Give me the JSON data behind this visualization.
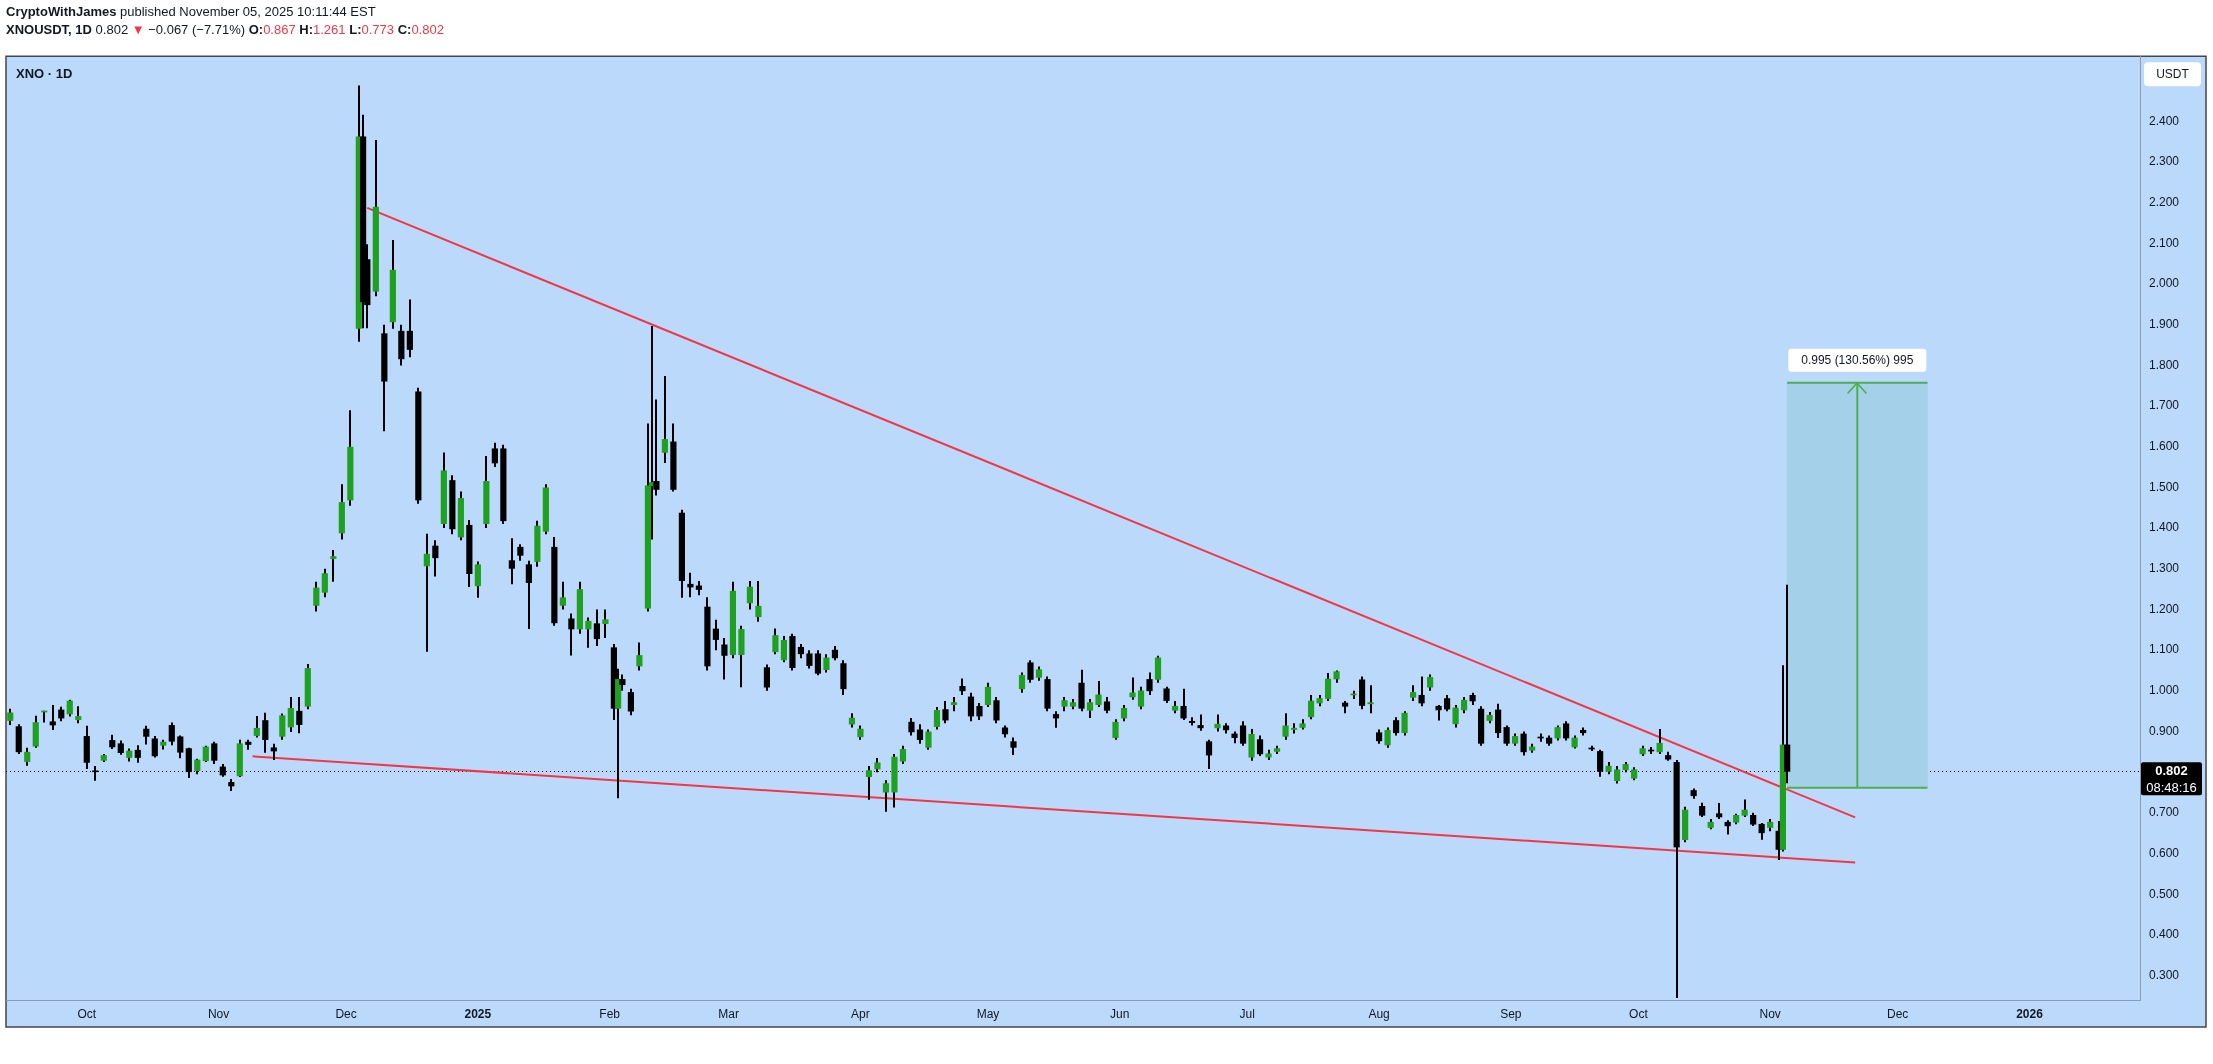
{
  "chart_data": {
    "type": "candlestick",
    "title": "CryptoWithJames published November 05, 2025 10:11:44 EST",
    "subtitle": "XNOUSDT, 1D 0.802 ▼ −0.067 (−7.71%) O:0.867 H:1.261 L:0.773 C:0.802",
    "ylabel": "USDT",
    "annotations": [
      "XNO · 1D",
      "08:48:16"
    ],
    "xlim": [
      "2024-09-12",
      "2026-01-27"
    ],
    "xticks": [
      {
        "value": "2024-10-01",
        "label": "Oct"
      },
      {
        "value": "2024-11-01",
        "label": "Nov"
      },
      {
        "value": "2024-12-01",
        "label": "Dec"
      },
      {
        "value": "2025-01-01",
        "label": "2025"
      },
      {
        "value": "2025-02-01",
        "label": "Feb"
      },
      {
        "value": "2025-03-01",
        "label": "Mar"
      },
      {
        "value": "2025-04-01",
        "label": "Apr"
      },
      {
        "value": "2025-05-01",
        "label": "May"
      },
      {
        "value": "2025-06-01",
        "label": "Jun"
      },
      {
        "value": "2025-07-01",
        "label": "Jul"
      },
      {
        "value": "2025-08-01",
        "label": "Aug"
      },
      {
        "value": "2025-09-01",
        "label": "Sep"
      },
      {
        "value": "2025-10-01",
        "label": "Oct"
      },
      {
        "value": "2025-11-01",
        "label": "Nov"
      },
      {
        "value": "2025-12-01",
        "label": "Dec"
      },
      {
        "value": "2026-01-01",
        "label": "2026"
      }
    ],
    "ylim": [
      0.24,
      2.56
    ],
    "yticks": [
      {
        "value": 0.3,
        "label": "0.300"
      },
      {
        "value": 0.4,
        "label": "0.400"
      },
      {
        "value": 0.5,
        "label": "0.500"
      },
      {
        "value": 0.6,
        "label": "0.600"
      },
      {
        "value": 0.7,
        "label": "0.700"
      },
      {
        "value": 0.9,
        "label": "0.900"
      },
      {
        "value": 1,
        "label": "1.000"
      },
      {
        "value": 1.1,
        "label": "1.100"
      },
      {
        "value": 1.2,
        "label": "1.200"
      },
      {
        "value": 1.3,
        "label": "1.300"
      },
      {
        "value": 1.4,
        "label": "1.400"
      },
      {
        "value": 1.5,
        "label": "1.500"
      },
      {
        "value": 1.6,
        "label": "1.600"
      },
      {
        "value": 1.7,
        "label": "1.700"
      },
      {
        "value": 1.8,
        "label": "1.800"
      },
      {
        "value": 1.9,
        "label": "1.900"
      },
      {
        "value": 2,
        "label": "2.000"
      },
      {
        "value": 2.1,
        "label": "2.100"
      },
      {
        "value": 2.2,
        "label": "2.200"
      },
      {
        "value": 2.3,
        "label": "2.300"
      },
      {
        "value": 2.4,
        "label": "2.400"
      }
    ],
    "ref_lines": [
      {
        "axis": "y",
        "value": 0.802,
        "label": "0.802",
        "color": "#000000",
        "line_style": "dotted"
      }
    ],
    "series": [
      {
        "color": "#000000",
        "x": [
          "2024-09-13",
          "2024-09-15",
          "2024-09-17",
          "2024-09-19",
          "2024-09-21",
          "2024-09-23",
          "2024-09-25",
          "2024-09-27",
          "2024-09-29",
          "2024-10-01",
          "2024-10-03",
          "2024-10-05",
          "2024-10-07",
          "2024-10-09",
          "2024-10-11",
          "2024-10-13",
          "2024-10-15",
          "2024-10-17",
          "2024-10-19",
          "2024-10-21",
          "2024-10-23",
          "2024-10-25",
          "2024-10-27",
          "2024-10-29",
          "2024-10-31",
          "2024-11-02",
          "2024-11-04",
          "2024-11-06",
          "2024-11-08",
          "2024-11-10",
          "2024-11-12",
          "2024-11-14",
          "2024-11-16",
          "2024-11-18",
          "2024-11-20",
          "2024-11-22",
          "2024-11-24",
          "2024-11-26",
          "2024-11-28",
          "2024-11-30",
          "2024-12-02",
          "2024-12-04",
          "2024-12-05",
          "2024-12-06",
          "2024-12-08",
          "2024-12-10",
          "2024-12-12",
          "2024-12-14",
          "2024-12-16",
          "2024-12-18",
          "2024-12-20",
          "2024-12-22",
          "2024-12-24",
          "2024-12-26",
          "2024-12-28",
          "2024-12-30",
          "2025-01-01",
          "2025-01-03",
          "2025-01-05",
          "2025-01-07",
          "2025-01-09",
          "2025-01-11",
          "2025-01-13",
          "2025-01-15",
          "2025-01-17",
          "2025-01-19",
          "2025-01-21",
          "2025-01-23",
          "2025-01-25",
          "2025-01-27",
          "2025-01-29",
          "2025-01-31",
          "2025-02-02",
          "2025-02-03",
          "2025-02-04",
          "2025-02-06",
          "2025-02-08",
          "2025-02-10",
          "2025-02-11",
          "2025-02-12",
          "2025-02-14",
          "2025-02-16",
          "2025-02-18",
          "2025-02-20",
          "2025-02-22",
          "2025-02-24",
          "2025-02-26",
          "2025-02-28",
          "2025-03-02",
          "2025-03-04",
          "2025-03-06",
          "2025-03-08",
          "2025-03-10",
          "2025-03-12",
          "2025-03-14",
          "2025-03-16",
          "2025-03-18",
          "2025-03-20",
          "2025-03-22",
          "2025-03-24",
          "2025-03-26",
          "2025-03-28",
          "2025-03-30",
          "2025-04-01",
          "2025-04-03",
          "2025-04-05",
          "2025-04-07",
          "2025-04-09",
          "2025-04-11",
          "2025-04-13",
          "2025-04-15",
          "2025-04-17",
          "2025-04-19",
          "2025-04-21",
          "2025-04-23",
          "2025-04-25",
          "2025-04-27",
          "2025-04-29",
          "2025-05-01",
          "2025-05-03",
          "2025-05-05",
          "2025-05-07",
          "2025-05-09",
          "2025-05-11",
          "2025-05-13",
          "2025-05-15",
          "2025-05-17",
          "2025-05-19",
          "2025-05-21",
          "2025-05-23",
          "2025-05-25",
          "2025-05-27",
          "2025-05-29",
          "2025-05-31",
          "2025-06-02",
          "2025-06-04",
          "2025-06-06",
          "2025-06-08",
          "2025-06-10",
          "2025-06-12",
          "2025-06-14",
          "2025-06-16",
          "2025-06-18",
          "2025-06-20",
          "2025-06-22",
          "2025-06-24",
          "2025-06-26",
          "2025-06-28",
          "2025-06-30",
          "2025-07-02",
          "2025-07-04",
          "2025-07-06",
          "2025-07-08",
          "2025-07-10",
          "2025-07-12",
          "2025-07-14",
          "2025-07-16",
          "2025-07-18",
          "2025-07-20",
          "2025-07-22",
          "2025-07-24",
          "2025-07-26",
          "2025-07-28",
          "2025-07-30",
          "2025-08-01",
          "2025-08-03",
          "2025-08-05",
          "2025-08-07",
          "2025-08-09",
          "2025-08-11",
          "2025-08-13",
          "2025-08-15",
          "2025-08-17",
          "2025-08-19",
          "2025-08-21",
          "2025-08-23",
          "2025-08-25",
          "2025-08-27",
          "2025-08-29",
          "2025-08-31",
          "2025-09-02",
          "2025-09-04",
          "2025-09-06",
          "2025-09-08",
          "2025-09-10",
          "2025-09-12",
          "2025-09-14",
          "2025-09-16",
          "2025-09-18",
          "2025-09-20",
          "2025-09-22",
          "2025-09-24",
          "2025-09-26",
          "2025-09-28",
          "2025-09-30",
          "2025-10-02",
          "2025-10-04",
          "2025-10-06",
          "2025-10-08",
          "2025-10-10",
          "2025-10-12",
          "2025-10-14",
          "2025-10-16",
          "2025-10-18",
          "2025-10-20",
          "2025-10-22",
          "2025-10-24",
          "2025-10-26",
          "2025-10-28",
          "2025-10-30",
          "2025-11-01",
          "2025-11-03",
          "2025-11-04",
          "2025-11-05"
        ],
        "ohlc": [
          [
            0.927,
            0.956,
            0.916,
            0.946
          ],
          [
            0.912,
            0.918,
            0.845,
            0.85
          ],
          [
            0.826,
            0.86,
            0.816,
            0.849
          ],
          [
            0.864,
            0.939,
            0.86,
            0.922
          ],
          [
            0.948,
            0.951,
            0.922,
            0.95
          ],
          [
            0.924,
            0.965,
            0.904,
            0.916
          ],
          [
            0.953,
            0.961,
            0.925,
            0.933
          ],
          [
            0.943,
            0.978,
            0.937,
            0.975
          ],
          [
            0.929,
            0.962,
            0.92,
            0.937
          ],
          [
            0.888,
            0.914,
            0.808,
            0.824
          ],
          [
            0.803,
            0.815,
            0.779,
            0.801
          ],
          [
            0.829,
            0.845,
            0.825,
            0.841
          ],
          [
            0.878,
            0.892,
            0.857,
            0.862
          ],
          [
            0.87,
            0.878,
            0.843,
            0.848
          ],
          [
            0.836,
            0.858,
            0.826,
            0.852
          ],
          [
            0.854,
            0.866,
            0.823,
            0.836
          ],
          [
            0.906,
            0.914,
            0.868,
            0.888
          ],
          [
            0.882,
            0.889,
            0.836,
            0.84
          ],
          [
            0.866,
            0.88,
            0.856,
            0.874
          ],
          [
            0.915,
            0.922,
            0.866,
            0.876
          ],
          [
            0.887,
            0.89,
            0.834,
            0.849
          ],
          [
            0.858,
            0.86,
            0.786,
            0.801
          ],
          [
            0.804,
            0.833,
            0.795,
            0.83
          ],
          [
            0.828,
            0.865,
            0.825,
            0.862
          ],
          [
            0.87,
            0.875,
            0.82,
            0.829
          ],
          [
            0.813,
            0.82,
            0.789,
            0.793
          ],
          [
            0.775,
            0.783,
            0.754,
            0.766
          ],
          [
            0.791,
            0.88,
            0.788,
            0.87
          ],
          [
            0.874,
            0.88,
            0.855,
            0.868
          ],
          [
            0.89,
            0.938,
            0.885,
            0.908
          ],
          [
            0.927,
            0.946,
            0.848,
            0.88
          ],
          [
            0.86,
            0.87,
            0.83,
            0.852
          ],
          [
            0.888,
            0.944,
            0.88,
            0.939
          ],
          [
            0.911,
            0.985,
            0.899,
            0.957
          ],
          [
            0.95,
            0.985,
            0.896,
            0.917
          ],
          [
            0.962,
            1.066,
            0.955,
            1.055
          ],
          [
            1.21,
            1.268,
            1.195,
            1.253
          ],
          [
            1.242,
            1.3,
            1.23,
            1.288
          ],
          [
            1.325,
            1.346,
            1.268,
            1.33
          ],
          [
            1.388,
            1.508,
            1.372,
            1.463
          ],
          [
            1.469,
            1.69,
            1.455,
            1.599
          ],
          [
            1.891,
            2.488,
            1.858,
            2.362
          ],
          [
            2.362,
            2.416,
            1.891,
            1.956
          ],
          [
            2.06,
            2.098,
            1.891,
            1.949
          ],
          [
            1.982,
            2.354,
            1.97,
            2.189
          ],
          [
            1.878,
            1.9,
            1.638,
            1.761
          ],
          [
            1.907,
            2.108,
            1.89,
            2.034
          ],
          [
            1.884,
            1.9,
            1.8,
            1.816
          ],
          [
            1.884,
            1.962,
            1.82,
            1.839
          ],
          [
            1.735,
            1.745,
            1.46,
            1.469
          ],
          [
            1.307,
            1.386,
            1.096,
            1.336
          ],
          [
            1.356,
            1.37,
            1.281,
            1.327
          ],
          [
            1.411,
            1.586,
            1.4,
            1.541
          ],
          [
            1.517,
            1.53,
            1.385,
            1.398
          ],
          [
            1.378,
            1.49,
            1.37,
            1.473
          ],
          [
            1.407,
            1.42,
            1.255,
            1.288
          ],
          [
            1.258,
            1.318,
            1.229,
            1.31
          ],
          [
            1.411,
            1.577,
            1.4,
            1.515
          ],
          [
            1.595,
            1.61,
            1.55,
            1.56
          ],
          [
            1.595,
            1.605,
            1.41,
            1.418
          ],
          [
            1.32,
            1.375,
            1.262,
            1.301
          ],
          [
            1.353,
            1.36,
            1.32,
            1.333
          ],
          [
            1.31,
            1.32,
            1.152,
            1.266
          ],
          [
            1.318,
            1.418,
            1.305,
            1.405
          ],
          [
            1.392,
            1.508,
            1.385,
            1.499
          ],
          [
            1.353,
            1.378,
            1.16,
            1.167
          ],
          [
            1.21,
            1.268,
            1.2,
            1.229
          ],
          [
            1.177,
            1.19,
            1.087,
            1.152
          ],
          [
            1.152,
            1.268,
            1.14,
            1.249
          ],
          [
            1.152,
            1.18,
            1.106,
            1.171
          ],
          [
            1.165,
            1.2,
            1.11,
            1.128
          ],
          [
            1.165,
            1.2,
            1.13,
            1.175
          ],
          [
            1.106,
            1.115,
            0.928,
            0.957
          ],
          [
            0.957,
            1.054,
            0.736,
            1.028
          ],
          [
            1.028,
            1.04,
            1,
            1.015
          ],
          [
            0.996,
            1.005,
            0.94,
            0.95
          ],
          [
            1.061,
            1.119,
            1.05,
            1.087
          ],
          [
            1.203,
            1.657,
            1.195,
            1.504
          ],
          [
            1.504,
            1.897,
            1.372,
            1.512
          ],
          [
            1.515,
            1.716,
            1.48,
            1.495
          ],
          [
            1.586,
            1.774,
            1.56,
            1.618
          ],
          [
            1.612,
            1.657,
            1.49,
            1.495
          ],
          [
            1.437,
            1.445,
            1.229,
            1.271
          ],
          [
            1.262,
            1.29,
            1.23,
            1.255
          ],
          [
            1.258,
            1.27,
            1.235,
            1.249
          ],
          [
            1.206,
            1.23,
            1.05,
            1.061
          ],
          [
            1.152,
            1.175,
            1.1,
            1.126
          ],
          [
            1.113,
            1.13,
            1.028,
            1.087
          ],
          [
            1.089,
            1.268,
            1.08,
            1.245
          ],
          [
            1.089,
            1.16,
            1.009,
            1.151
          ],
          [
            1.216,
            1.27,
            1.2,
            1.255
          ],
          [
            1.182,
            1.27,
            1.17,
            1.208
          ],
          [
            1.057,
            1.065,
            1,
            1.009
          ],
          [
            1.096,
            1.153,
            1.09,
            1.136
          ],
          [
            1.076,
            1.135,
            1.07,
            1.124
          ],
          [
            1.134,
            1.14,
            1.05,
            1.057
          ],
          [
            1.107,
            1.115,
            1.08,
            1.091
          ],
          [
            1.091,
            1.1,
            1.055,
            1.062
          ],
          [
            1.091,
            1.1,
            1.038,
            1.043
          ],
          [
            1.052,
            1.09,
            1.045,
            1.081
          ],
          [
            1.1,
            1.11,
            1.075,
            1.081
          ],
          [
            1.067,
            1.075,
            0.99,
            1.005
          ],
          [
            0.918,
            0.945,
            0.91,
            0.933
          ],
          [
            0.887,
            0.915,
            0.88,
            0.906
          ],
          [
            0.789,
            0.815,
            0.732,
            0.804
          ],
          [
            0.808,
            0.835,
            0.8,
            0.823
          ],
          [
            0.751,
            0.78,
            0.703,
            0.772
          ],
          [
            0.751,
            0.845,
            0.713,
            0.837
          ],
          [
            0.827,
            0.865,
            0.82,
            0.856
          ],
          [
            0.923,
            0.933,
            0.89,
            0.899
          ],
          [
            0.904,
            0.918,
            0.87,
            0.88
          ],
          [
            0.861,
            0.905,
            0.855,
            0.899
          ],
          [
            0.912,
            0.96,
            0.905,
            0.952
          ],
          [
            0.954,
            0.975,
            0.92,
            0.928
          ],
          [
            0.966,
            0.985,
            0.95,
            0.971
          ],
          [
            1.011,
            1.03,
            0.99,
            1
          ],
          [
            0.985,
            0.995,
            0.925,
            0.938
          ],
          [
            0.962,
            0.97,
            0.928,
            0.938
          ],
          [
            0.966,
            1.02,
            0.96,
            1.009
          ],
          [
            0.976,
            0.985,
            0.92,
            0.928
          ],
          [
            0.909,
            0.915,
            0.885,
            0.894
          ],
          [
            0.875,
            0.885,
            0.842,
            0.861
          ],
          [
            1.005,
            1.045,
            0.995,
            1.038
          ],
          [
            1.069,
            1.075,
            1.02,
            1.028
          ],
          [
            1.033,
            1.06,
            1.025,
            1.052
          ],
          [
            1.028,
            1.035,
            0.95,
            0.957
          ],
          [
            0.942,
            0.95,
            0.909,
            0.933
          ],
          [
            0.962,
            0.985,
            0.95,
            0.976
          ],
          [
            0.962,
            0.98,
            0.955,
            0.971
          ],
          [
            1.019,
            1.052,
            0.95,
            0.957
          ],
          [
            0.952,
            0.98,
            0.933,
            0.971
          ],
          [
            0.966,
            1.024,
            0.96,
            0.99
          ],
          [
            0.973,
            0.985,
            0.945,
            0.952
          ],
          [
            0.885,
            0.93,
            0.88,
            0.923
          ],
          [
            0.933,
            0.965,
            0.925,
            0.957
          ],
          [
            0.985,
            1.033,
            0.978,
            0.995
          ],
          [
            0.962,
            1.01,
            0.955,
            1
          ],
          [
            1.028,
            1.045,
            0.99,
            1
          ],
          [
            1.028,
            1.086,
            1.02,
            1.081
          ],
          [
            1.005,
            1.01,
            0.97,
            0.976
          ],
          [
            0.952,
            0.975,
            0.945,
            0.962
          ],
          [
            0.962,
            1.005,
            0.928,
            0.933
          ],
          [
            0.925,
            0.935,
            0.915,
            0.922
          ],
          [
            0.915,
            0.942,
            0.902,
            0.909
          ],
          [
            0.875,
            0.88,
            0.808,
            0.842
          ],
          [
            0.909,
            0.942,
            0.9,
            0.918
          ],
          [
            0.914,
            0.92,
            0.895,
            0.904
          ],
          [
            0.894,
            0.9,
            0.871,
            0.885
          ],
          [
            0.914,
            0.925,
            0.865,
            0.871
          ],
          [
            0.837,
            0.906,
            0.828,
            0.893
          ],
          [
            0.88,
            0.89,
            0.84,
            0.845
          ],
          [
            0.837,
            0.855,
            0.83,
            0.845
          ],
          [
            0.851,
            0.865,
            0.845,
            0.858
          ],
          [
            0.888,
            0.945,
            0.88,
            0.914
          ],
          [
            0.905,
            0.92,
            0.895,
            0.908
          ],
          [
            0.91,
            0.93,
            0.905,
            0.919
          ],
          [
            0.936,
            0.99,
            0.93,
            0.975
          ],
          [
            0.97,
            0.99,
            0.962,
            0.981
          ],
          [
            0.981,
            1.044,
            0.975,
            1.029
          ],
          [
            1.029,
            1.05,
            1.02,
            1.047
          ],
          [
            0.97,
            0.975,
            0.945,
            0.962
          ],
          [
            0.99,
            1,
            0.98,
            0.992
          ],
          [
            1.027,
            1.035,
            0.955,
            0.964
          ],
          [
            0.968,
            1.014,
            0.945,
            0.971
          ],
          [
            0.897,
            0.905,
            0.87,
            0.877
          ],
          [
            0.867,
            0.91,
            0.86,
            0.903
          ],
          [
            0.927,
            0.935,
            0.89,
            0.897
          ],
          [
            0.897,
            0.95,
            0.89,
            0.945
          ],
          [
            0.984,
            1.014,
            0.975,
            0.996
          ],
          [
            0.989,
            1.035,
            0.962,
            0.97
          ],
          [
            1.009,
            1.04,
            1,
            1.033
          ],
          [
            0.962,
            0.965,
            0.927,
            0.953
          ],
          [
            0.981,
            0.99,
            0.95,
            0.955
          ],
          [
            0.919,
            0.965,
            0.91,
            0.958
          ],
          [
            0.953,
            0.985,
            0.945,
            0.977
          ],
          [
            0.989,
            0.995,
            0.965,
            0.975
          ],
          [
            0.955,
            0.962,
            0.865,
            0.871
          ],
          [
            0.927,
            0.948,
            0.92,
            0.94
          ],
          [
            0.953,
            0.968,
            0.884,
            0.897
          ],
          [
            0.91,
            0.915,
            0.865,
            0.871
          ],
          [
            0.871,
            0.895,
            0.865,
            0.888
          ],
          [
            0.894,
            0.9,
            0.841,
            0.85
          ],
          [
            0.854,
            0.87,
            0.848,
            0.862
          ],
          [
            0.886,
            0.895,
            0.875,
            0.884
          ],
          [
            0.884,
            0.89,
            0.865,
            0.871
          ],
          [
            0.884,
            0.915,
            0.878,
            0.91
          ],
          [
            0.919,
            0.925,
            0.878,
            0.884
          ],
          [
            0.862,
            0.89,
            0.858,
            0.884
          ],
          [
            0.903,
            0.91,
            0.89,
            0.897
          ],
          [
            0.859,
            0.865,
            0.852,
            0.857
          ],
          [
            0.851,
            0.855,
            0.789,
            0.802
          ],
          [
            0.802,
            0.825,
            0.795,
            0.815
          ],
          [
            0.779,
            0.815,
            0.772,
            0.806
          ],
          [
            0.806,
            0.825,
            0.8,
            0.819
          ],
          [
            0.785,
            0.812,
            0.78,
            0.806
          ],
          [
            0.845,
            0.865,
            0.84,
            0.858
          ],
          [
            0.854,
            0.862,
            0.845,
            0.852
          ],
          [
            0.85,
            0.906,
            0.845,
            0.871
          ],
          [
            0.841,
            0.85,
            0.828,
            0.832
          ],
          [
            0.824,
            0.83,
            0.245,
            0.616
          ],
          [
            0.634,
            0.715,
            0.628,
            0.707
          ],
          [
            0.755,
            0.76,
            0.735,
            0.742
          ],
          [
            0.716,
            0.725,
            0.69,
            0.694
          ],
          [
            0.664,
            0.685,
            0.66,
            0.677
          ],
          [
            0.698,
            0.724,
            0.685,
            0.69
          ],
          [
            0.677,
            0.682,
            0.647,
            0.668
          ],
          [
            0.677,
            0.698,
            0.672,
            0.694
          ],
          [
            0.694,
            0.733,
            0.69,
            0.707
          ],
          [
            0.694,
            0.7,
            0.668,
            0.672
          ],
          [
            0.672,
            0.675,
            0.634,
            0.651
          ],
          [
            0.664,
            0.685,
            0.655,
            0.677
          ],
          [
            0.655,
            0.68,
            0.584,
            0.61
          ],
          [
            0.61,
            1.063,
            0.605,
            0.867
          ],
          [
            0.867,
            1.261,
            0.773,
            0.802
          ]
        ],
        "colors": [
          "#20a020",
          "#000000",
          "#20a020",
          "#20a020",
          "#20a020",
          "#000000",
          "#000000",
          "#20a020",
          "#20a020",
          "#000000",
          "#000000",
          "#20a020",
          "#000000",
          "#000000",
          "#20a020",
          "#000000",
          "#000000",
          "#000000",
          "#20a020",
          "#000000",
          "#000000",
          "#000000",
          "#20a020",
          "#20a020",
          "#000000",
          "#000000",
          "#000000",
          "#20a020",
          "#000000",
          "#20a020",
          "#000000",
          "#000000",
          "#20a020",
          "#20a020",
          "#000000",
          "#20a020",
          "#20a020",
          "#20a020",
          "#20a020",
          "#20a020",
          "#20a020",
          "#20a020",
          "#000000",
          "#000000",
          "#20a020",
          "#000000",
          "#20a020",
          "#000000",
          "#000000",
          "#000000",
          "#20a020",
          "#000000",
          "#20a020",
          "#000000",
          "#20a020",
          "#000000",
          "#20a020",
          "#20a020",
          "#000000",
          "#000000",
          "#000000",
          "#000000",
          "#000000",
          "#20a020",
          "#20a020",
          "#000000",
          "#20a020",
          "#000000",
          "#20a020",
          "#20a020",
          "#000000",
          "#20a020",
          "#000000",
          "#20a020",
          "#000000",
          "#000000",
          "#20a020",
          "#20a020",
          "#20a020",
          "#000000",
          "#20a020",
          "#000000",
          "#000000",
          "#000000",
          "#000000",
          "#000000",
          "#000000",
          "#000000",
          "#20a020",
          "#20a020",
          "#20a020",
          "#20a020",
          "#000000",
          "#20a020",
          "#20a020",
          "#000000",
          "#000000",
          "#000000",
          "#000000",
          "#20a020",
          "#000000",
          "#000000",
          "#20a020",
          "#20a020",
          "#20a020",
          "#20a020",
          "#20a020",
          "#20a020",
          "#20a020",
          "#000000",
          "#000000",
          "#20a020",
          "#20a020",
          "#000000",
          "#20a020",
          "#000000",
          "#000000",
          "#000000",
          "#20a020",
          "#000000",
          "#000000",
          "#000000",
          "#20a020",
          "#000000",
          "#20a020",
          "#000000",
          "#000000",
          "#20a020",
          "#20a020",
          "#000000",
          "#20a020",
          "#20a020",
          "#000000",
          "#20a020",
          "#20a020",
          "#20a020",
          "#20a020",
          "#000000",
          "#20a020",
          "#000000",
          "#20a020",
          "#000000",
          "#000000",
          "#000000",
          "#000000",
          "#20a020",
          "#000000",
          "#000000",
          "#000000",
          "#20a020",
          "#000000",
          "#20a020",
          "#20a020",
          "#20a020",
          "#20a020",
          "#20a020",
          "#20a020",
          "#20a020",
          "#20a020",
          "#20a020",
          "#000000",
          "#20a020",
          "#000000",
          "#20a020",
          "#000000",
          "#20a020",
          "#000000",
          "#20a020",
          "#20a020",
          "#000000",
          "#20a020",
          "#000000",
          "#000000",
          "#20a020",
          "#20a020",
          "#000000",
          "#000000",
          "#20a020",
          "#000000",
          "#000000",
          "#20a020",
          "#000000",
          "#20a020",
          "#000000",
          "#000000",
          "#20a020",
          "#000000",
          "#20a020",
          "#000000",
          "#000000",
          "#000000",
          "#20a020",
          "#20a020",
          "#20a020",
          "#20a020",
          "#20a020",
          "#000000",
          "#20a020",
          "#000000",
          "#000000",
          "#20a020",
          "#000000",
          "#000000",
          "#20a020",
          "#000000",
          "#000000",
          "#20a020",
          "#20a020",
          "#000000",
          "#000000",
          "#20a020",
          "#000000",
          "#20a020",
          "#000000"
        ]
      },
      {
        "type": "line",
        "x": [
          "2024-12-06",
          "2025-11-21"
        ],
        "values": [
          2.187,
          0.689
        ],
        "color": "#f23645"
      },
      {
        "type": "line",
        "x": [
          "2024-11-09",
          "2025-11-21"
        ],
        "values": [
          0.839,
          0.578
        ],
        "color": "#f23645"
      },
      {
        "type": "bar",
        "x": [
          "2025-11-21T12:00"
        ],
        "base": [
          0.762
        ],
        "values": [
          0.995
        ],
        "value_labels": [
          "0.995 (130.56%) 995"
        ],
        "color": "#a4d0ea"
      },
      {
        "type": "line",
        "x": [
          "2025-11-05",
          "2025-12-08"
        ],
        "values": [
          0.762,
          0.762
        ],
        "color": "#4caf50"
      },
      {
        "type": "line",
        "x": [
          "2025-11-05",
          "2025-12-08"
        ],
        "values": [
          1.757,
          1.757
        ],
        "color": "#4caf50"
      },
      {
        "type": "line",
        "x": [
          "2025-11-21T12:00",
          "2025-11-21T12:00"
        ],
        "values": [
          0.762,
          1.757
        ],
        "color": "#4caf50"
      }
    ]
  }
}
